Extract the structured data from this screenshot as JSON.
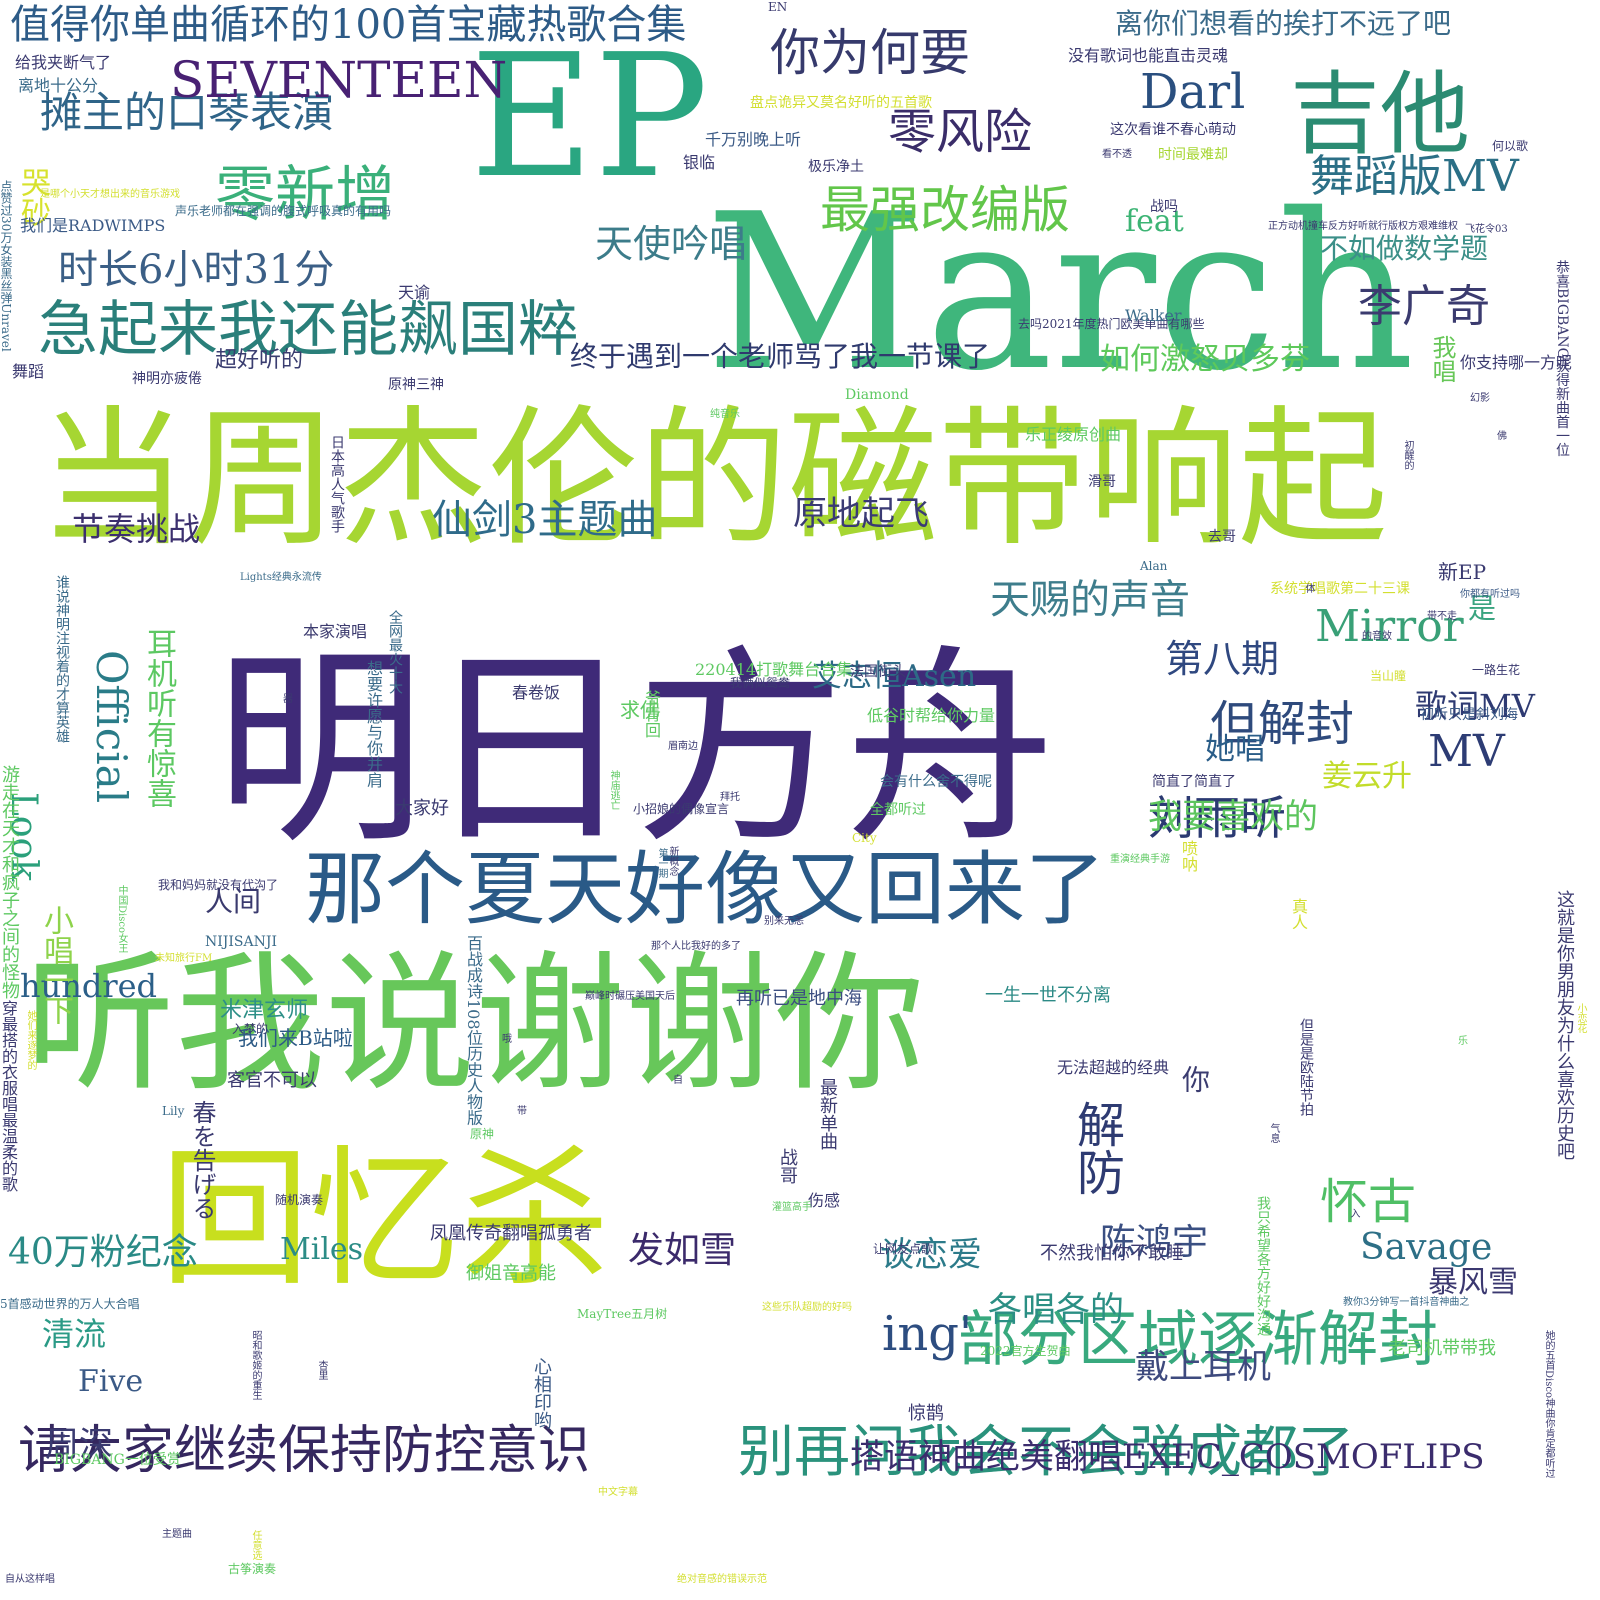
{
  "palette": [
    "#440154",
    "#3b528b",
    "#21918c",
    "#5ec962",
    "#fde725"
  ],
  "words": [
    {
      "text": "明日方舟",
      "color": "#3f2a78"
    },
    {
      "text": "March",
      "color": "#3fb67c"
    },
    {
      "text": "当周杰伦的磁带响起",
      "color": "#a6d632"
    },
    {
      "text": "听我说谢谢你",
      "color": "#67c75a"
    },
    {
      "text": "回忆杀",
      "color": "#c8df1e"
    },
    {
      "text": "EP",
      "color": "#2aa681"
    },
    {
      "text": "那个夏天好像又回来了",
      "color": "#2a5a87"
    },
    {
      "text": "吉他",
      "color": "#2b8b72"
    },
    {
      "text": "急起来我还能飙国粹",
      "color": "#2a7f7a"
    },
    {
      "text": "零新增",
      "color": "#3ab07a"
    },
    {
      "text": "部分区域逐渐解封",
      "color": "#38a97e"
    },
    {
      "text": "别再问我会不会弹成都了",
      "color": "#2a927c"
    },
    {
      "text": "请大家继续保持防控意识",
      "color": "#35275f"
    },
    {
      "text": "值得你单曲循环的100首宝藏热歌合集",
      "color": "#2d5b87"
    },
    {
      "text": "你为何要",
      "color": "#363a6c"
    },
    {
      "text": "零风险",
      "color": "#3a2d69"
    },
    {
      "text": "摊主的口琴表演",
      "color": "#2f6488"
    },
    {
      "text": "SEVENTEEN",
      "color": "#482173"
    },
    {
      "text": "Darl",
      "color": "#2a4f7f"
    },
    {
      "text": "最强改编版",
      "color": "#62c64a"
    },
    {
      "text": "舞蹈版MV",
      "color": "#2b6f86"
    },
    {
      "text": "时长6小时31分",
      "color": "#3b5f86"
    },
    {
      "text": "天使吟唱",
      "color": "#3c7c8a"
    },
    {
      "text": "李广奇",
      "color": "#3b3b6f"
    },
    {
      "text": "仙剑3主题曲",
      "color": "#2f6b8a"
    },
    {
      "text": "但解封",
      "color": "#2e4a7c"
    },
    {
      "text": "Mirror",
      "color": "#39a077"
    },
    {
      "text": "刘雨昕",
      "color": "#2b3a72"
    },
    {
      "text": "天赐的声音",
      "color": "#3e7d8c"
    },
    {
      "text": "怀古",
      "color": "#4fbf65"
    },
    {
      "text": "解防",
      "color": "#2e3b72"
    },
    {
      "text": "ing'",
      "color": "#2d4d80"
    },
    {
      "text": "MV",
      "color": "#2d3c74"
    },
    {
      "text": "Official",
      "color": "#2a7c88"
    },
    {
      "text": "Look",
      "color": "#2ba07b"
    },
    {
      "text": "40万粉纪念",
      "color": "#2a8a86"
    },
    {
      "text": "陈鸿宇",
      "color": "#3a4f82"
    },
    {
      "text": "Savage",
      "color": "#2d6f86"
    },
    {
      "text": "发如雪",
      "color": "#3b2a6b"
    },
    {
      "text": "塔语神曲绝美翻唱EXEC_COSMOFLIPS",
      "color": "#3b2c6d"
    },
    {
      "text": "戴上耳机",
      "color": "#3e4a7e"
    },
    {
      "text": "暴风雪",
      "color": "#3b3870"
    },
    {
      "text": "各唱各的",
      "color": "#2b8f84"
    },
    {
      "text": "谈恋爱",
      "color": "#2c7b8a"
    },
    {
      "text": "第八期",
      "color": "#2f4880"
    },
    {
      "text": "歌词MV",
      "color": "#2e3a72"
    },
    {
      "text": "如何激怒贝多芬",
      "color": "#5ec95b"
    },
    {
      "text": "终于遇到一个老师骂了我一节课了",
      "color": "#2f3a6e"
    },
    {
      "text": "我要喜欢的",
      "color": "#5dc55e"
    },
    {
      "text": "节奏挑战",
      "color": "#3b2f6e"
    },
    {
      "text": "原地起飞",
      "color": "#3a3a74"
    },
    {
      "text": "艾志恒Asen",
      "color": "#2d6a86"
    },
    {
      "text": "耳机听有惊喜",
      "color": "#5cc862"
    },
    {
      "text": "不如做数学题",
      "color": "#3b8f88"
    },
    {
      "text": "hundred",
      "color": "#2b5f88"
    },
    {
      "text": "清流",
      "color": "#2a9a86"
    },
    {
      "text": "Five",
      "color": "#3b5a86"
    },
    {
      "text": "周深",
      "color": "#3a3a70"
    },
    {
      "text": "Miles",
      "color": "#2c8c86"
    },
    {
      "text": "离你们想看的挨打不远了吧",
      "color": "#3b6b8a"
    },
    {
      "text": "哭砂",
      "color": "#d7e22d"
    },
    {
      "text": "feat",
      "color": "#3cb474"
    },
    {
      "text": "超好听的",
      "color": "#3a3d70"
    },
    {
      "text": "我唱",
      "color": "#67c758"
    },
    {
      "text": "姜云升",
      "color": "#c2dc2b"
    },
    {
      "text": "她唱",
      "color": "#2a5d88"
    },
    {
      "text": "小唱一下",
      "color": "#8ed34b"
    },
    {
      "text": "人间",
      "color": "#3a3a6e"
    },
    {
      "text": "米津玄师",
      "color": "#2d8f87"
    },
    {
      "text": "我们来B站啦",
      "color": "#2c5a86"
    },
    {
      "text": "是",
      "color": "#3aa480"
    },
    {
      "text": "你",
      "color": "#3b3c70"
    },
    {
      "text": "新EP",
      "color": "#3a3a70"
    },
    {
      "text": "大家好",
      "color": "#3a3a70"
    },
    {
      "text": "春を告げる",
      "color": "#3b3a70"
    },
    {
      "text": "本家演唱",
      "color": "#3b3a6e"
    },
    {
      "text": "春卷饭",
      "color": "#3b3a6e"
    },
    {
      "text": "求佛",
      "color": "#5ec962"
    },
    {
      "text": "再听已是地中海",
      "color": "#3b4d80"
    },
    {
      "text": "一生一世不分离",
      "color": "#2c8a86"
    },
    {
      "text": "客官不可以",
      "color": "#3b3a70"
    },
    {
      "text": "最新单曲",
      "color": "#3b3a70"
    },
    {
      "text": "战哥",
      "color": "#3b3a70"
    },
    {
      "text": "伤感",
      "color": "#3b3a70"
    },
    {
      "text": "不然我怕你不敢睡",
      "color": "#3b3a70"
    },
    {
      "text": "心相印哟",
      "color": "#3b5a86"
    },
    {
      "text": "惊鹊",
      "color": "#3b3a70"
    },
    {
      "text": "凤凰传奇翻唱孤勇者",
      "color": "#3b3a70"
    },
    {
      "text": "御姐音高能",
      "color": "#5ec962"
    },
    {
      "text": "老司机带带我",
      "color": "#5ec962"
    },
    {
      "text": "给我夹断气了",
      "color": "#3b3a70"
    },
    {
      "text": "离地十公分",
      "color": "#3b6b8a"
    },
    {
      "text": "没有歌词也能直击灵魂",
      "color": "#3b3a70"
    },
    {
      "text": "盘点诡异又莫名好听的五首歌",
      "color": "#d3df30"
    },
    {
      "text": "千万别晚上听",
      "color": "#3b5a86"
    },
    {
      "text": "这次看谁不春心萌动",
      "color": "#3b3a70"
    },
    {
      "text": "时间最难却",
      "color": "#a6d632"
    },
    {
      "text": "看不透",
      "color": "#3b3a70"
    },
    {
      "text": "何以歌",
      "color": "#3b3a70"
    },
    {
      "text": "银临",
      "color": "#3b3a70"
    },
    {
      "text": "战吗",
      "color": "#3b3a70"
    },
    {
      "text": "我们是RADWIMPS",
      "color": "#3b5a86"
    },
    {
      "text": "正方动机撞车反方好听就行版权方艰难维权",
      "color": "#3b3a70"
    },
    {
      "text": "飞花令03",
      "color": "#3b3a70"
    },
    {
      "text": "天谕",
      "color": "#3b3a70"
    },
    {
      "text": "去吗2021年度热门欧美单曲有哪些",
      "color": "#3b3a70"
    },
    {
      "text": "Walker",
      "color": "#3b6b8a"
    },
    {
      "text": "原神三神",
      "color": "#3b3a70"
    },
    {
      "text": "神明亦疲倦",
      "color": "#3b3a70"
    },
    {
      "text": "舞蹈",
      "color": "#3b3a70"
    },
    {
      "text": "纯音乐",
      "color": "#5ec962"
    },
    {
      "text": "Diamond",
      "color": "#5ec962"
    },
    {
      "text": "乐正绫原创曲",
      "color": "#5ec962"
    },
    {
      "text": "幻影",
      "color": "#3b3a70"
    },
    {
      "text": "你支持哪一方呢",
      "color": "#3b3a70"
    },
    {
      "text": "去哥",
      "color": "#3b3a70"
    },
    {
      "text": "Alan",
      "color": "#3b6b8a"
    },
    {
      "text": "Lights经典永流传",
      "color": "#3b6b8a"
    },
    {
      "text": "系统学唱歌第二十三课",
      "color": "#d3df30"
    },
    {
      "text": "你都有听过吗",
      "color": "#3b5a86"
    },
    {
      "text": "带不走",
      "color": "#3b3a70"
    },
    {
      "text": "的音效",
      "color": "#3b3a70"
    },
    {
      "text": "当山瞳",
      "color": "#d3df30"
    },
    {
      "text": "一路生花",
      "color": "#3b3a70"
    },
    {
      "text": "法国街头",
      "color": "#3b3a70"
    },
    {
      "text": "220414打歌舞台合集",
      "color": "#5ec962"
    },
    {
      "text": "我俩似鸳鸯",
      "color": "#3b3a70"
    },
    {
      "text": "低谷时帮给你力量",
      "color": "#5ec962"
    },
    {
      "text": "初听只是斜刘海",
      "color": "#3b5a86"
    },
    {
      "text": "眉南边",
      "color": "#3b3a70"
    },
    {
      "text": "会有什么舍不得呢",
      "color": "#3b6b8a"
    },
    {
      "text": "全都听过",
      "color": "#5ec962"
    },
    {
      "text": "简直了简直了",
      "color": "#3b3a70"
    },
    {
      "text": "小招娘的偶像宣言",
      "color": "#3b3a70"
    },
    {
      "text": "City",
      "color": "#d3df30"
    },
    {
      "text": "重演经典手游",
      "color": "#5ec962"
    },
    {
      "text": "我和妈妈就没有代沟了",
      "color": "#3b3a70"
    },
    {
      "text": "NIJISANJI",
      "color": "#3b6b8a"
    },
    {
      "text": "未知旅行FM",
      "color": "#d3df30"
    },
    {
      "text": "巅峰时碾压美国天后",
      "color": "#3b3a70"
    },
    {
      "text": "那个人比我好的多了",
      "color": "#3b3a70"
    },
    {
      "text": "别来无恙",
      "color": "#3b3a70"
    },
    {
      "text": "入梦的",
      "color": "#3b3a70"
    },
    {
      "text": "无法超越的经典",
      "color": "#3b3a70"
    },
    {
      "text": "原神",
      "color": "#5ec962"
    },
    {
      "text": "Lily",
      "color": "#3b6b8a"
    },
    {
      "text": "随机演奏",
      "color": "#3b3a70"
    },
    {
      "text": "灌篮高手",
      "color": "#5ec962"
    },
    {
      "text": "让网友点歌",
      "color": "#3b3a70"
    },
    {
      "text": "教你3分钟写一首抖音神曲之",
      "color": "#3b6b8a"
    },
    {
      "text": "这些乐队超励的好吗",
      "color": "#d3df30"
    },
    {
      "text": "MayTree五月树",
      "color": "#5ec962"
    },
    {
      "text": "2022官方生贺曲",
      "color": "#5ec962"
    },
    {
      "text": "5首感动世界的万人大合唱",
      "color": "#3b6b8a"
    },
    {
      "text": "BIGBANG一位受赏",
      "color": "#5ec962"
    },
    {
      "text": "中文字幕",
      "color": "#d3df30"
    },
    {
      "text": "主题曲",
      "color": "#3b3a70"
    },
    {
      "text": "古筝演奏",
      "color": "#5ec962"
    },
    {
      "text": "绝对音感的错误示范",
      "color": "#d3df30"
    },
    {
      "text": "自从这样唱",
      "color": "#3b3a70"
    },
    {
      "text": "EN",
      "color": "#3b3a70"
    },
    {
      "text": "是哪个小天才想出来的音乐游戏",
      "color": "#d3df30"
    },
    {
      "text": "声乐老师都在强调的腹式呼吸真的有用吗",
      "color": "#3b6b8a"
    },
    {
      "text": "极乐净土",
      "color": "#3b3a70"
    },
    {
      "text": "佛",
      "color": "#3b3a70"
    },
    {
      "text": "初醒的",
      "color": "#3b3a70"
    },
    {
      "text": "滑哥",
      "color": "#3b3a70"
    },
    {
      "text": "体",
      "color": "#3b3a70"
    },
    {
      "text": "乐",
      "color": "#5ec962"
    },
    {
      "text": "气息",
      "color": "#3b3a70"
    },
    {
      "text": "入",
      "color": "#3b3a70"
    },
    {
      "text": "自",
      "color": "#3b3a70"
    },
    {
      "text": "哦",
      "color": "#3b3a70"
    },
    {
      "text": "带",
      "color": "#3b3a70"
    },
    {
      "text": "器",
      "color": "#3b3a70"
    },
    {
      "text": "拜托",
      "color": "#3b3a70"
    },
    {
      "text": "点赞过30万女装黑丝弹Unravel",
      "color": "#3b6b8a"
    },
    {
      "text": "恭喜BIGBANG获得新曲首一位",
      "color": "#3b3a70"
    },
    {
      "text": "游走在天才和疯子之间的怪物",
      "color": "#5ec962"
    },
    {
      "text": "谁说神明注视着的才算英雄",
      "color": "#3b6b8a"
    },
    {
      "text": "穿最搭的衣服唱最温柔的歌",
      "color": "#3b3a70"
    },
    {
      "text": "这就是你男朋友为什么喜欢历史吧",
      "color": "#3b3a70"
    },
    {
      "text": "百战成诗108位历史人物版",
      "color": "#3b6b8a"
    },
    {
      "text": "日本高人气歌手",
      "color": "#3b3a70"
    },
    {
      "text": "想要许愿与你并肩",
      "color": "#3b6b8a"
    },
    {
      "text": "全网最火十大",
      "color": "#3b6b8a"
    },
    {
      "text": "但是是欧陆节拍",
      "color": "#3b3a70"
    },
    {
      "text": "我只希望各方好好沟通",
      "color": "#5ec962"
    },
    {
      "text": "她的五首Disco神曲你肯定都听过",
      "color": "#3b3a70"
    },
    {
      "text": "昭和歌姬的重生",
      "color": "#3b3a70"
    },
    {
      "text": "杏里",
      "color": "#3b3a70"
    },
    {
      "text": "任意选",
      "color": "#d3df30"
    },
    {
      "text": "新概念",
      "color": "#3b3a70"
    },
    {
      "text": "第一期",
      "color": "#3b6b8a"
    },
    {
      "text": "神庙逃亡",
      "color": "#5ec962"
    },
    {
      "text": "爷青回",
      "color": "#5ec962"
    },
    {
      "text": "喷呐",
      "color": "#d3df30"
    },
    {
      "text": "真人",
      "color": "#d3df30"
    },
    {
      "text": "中国Disco女王",
      "color": "#5ec962"
    },
    {
      "text": "她们来逐梦的",
      "color": "#d3df30"
    },
    {
      "text": "小恋花",
      "color": "#d3df30"
    }
  ]
}
